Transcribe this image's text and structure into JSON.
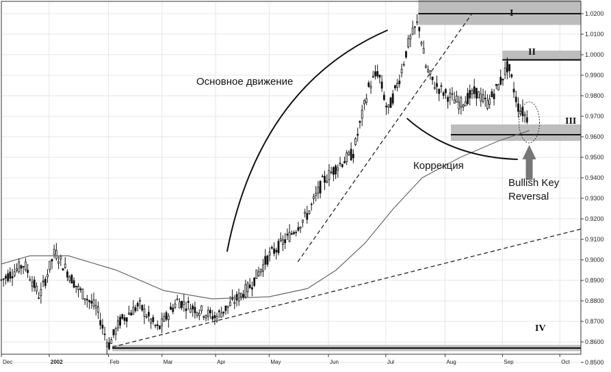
{
  "chart_data": {
    "type": "candlestick",
    "ylim": [
      0.854,
      1.026
    ],
    "y_ticks": [
      "0.8500",
      "0.8600",
      "0.8700",
      "0.8800",
      "0.8900",
      "0.9000",
      "0.9100",
      "0.9200",
      "0.9300",
      "0.9400",
      "0.9500",
      "0.9600",
      "0.9700",
      "0.9800",
      "0.9900",
      "1.0000",
      "1.0100",
      "1.0200"
    ],
    "y_tick_values": [
      0.85,
      0.86,
      0.87,
      0.88,
      0.89,
      0.9,
      0.91,
      0.92,
      0.93,
      0.94,
      0.95,
      0.96,
      0.97,
      0.98,
      0.99,
      1.0,
      1.01,
      1.02
    ],
    "x_ticks": [
      "Dec",
      "2002",
      "Feb",
      "Mar",
      "Apr",
      "May",
      "Jun",
      "Jul",
      "Aug",
      "Sep",
      "Oct"
    ],
    "x_tick_days": [
      0,
      25,
      56,
      84,
      112,
      140,
      171,
      201,
      232,
      262,
      292
    ],
    "x_range_days": [
      0,
      303
    ],
    "trading_days": 263,
    "price_path": [
      [
        0,
        0.89
      ],
      [
        12,
        0.898
      ],
      [
        20,
        0.882
      ],
      [
        28,
        0.904
      ],
      [
        40,
        0.886
      ],
      [
        50,
        0.876
      ],
      [
        56,
        0.858
      ],
      [
        62,
        0.87
      ],
      [
        72,
        0.878
      ],
      [
        82,
        0.866
      ],
      [
        92,
        0.88
      ],
      [
        102,
        0.876
      ],
      [
        112,
        0.872
      ],
      [
        122,
        0.88
      ],
      [
        130,
        0.887
      ],
      [
        140,
        0.902
      ],
      [
        150,
        0.911
      ],
      [
        160,
        0.922
      ],
      [
        168,
        0.938
      ],
      [
        176,
        0.946
      ],
      [
        184,
        0.952
      ],
      [
        192,
        0.984
      ],
      [
        197,
        0.992
      ],
      [
        202,
        0.972
      ],
      [
        208,
        0.988
      ],
      [
        213,
        1.006
      ],
      [
        218,
        1.016
      ],
      [
        222,
        0.994
      ],
      [
        226,
        0.986
      ],
      [
        232,
        0.981
      ],
      [
        240,
        0.976
      ],
      [
        248,
        0.982
      ],
      [
        254,
        0.976
      ],
      [
        260,
        0.985
      ],
      [
        265,
        0.995
      ],
      [
        270,
        0.975
      ],
      [
        276,
        0.968
      ]
    ],
    "moving_average": [
      [
        0,
        0.898
      ],
      [
        15,
        0.902
      ],
      [
        35,
        0.902
      ],
      [
        60,
        0.895
      ],
      [
        85,
        0.885
      ],
      [
        110,
        0.881
      ],
      [
        140,
        0.882
      ],
      [
        160,
        0.886
      ],
      [
        175,
        0.895
      ],
      [
        190,
        0.908
      ],
      [
        205,
        0.925
      ],
      [
        220,
        0.94
      ],
      [
        240,
        0.95
      ],
      [
        260,
        0.958
      ],
      [
        276,
        0.963
      ]
    ],
    "annotations": {
      "main_move": "Основное движение",
      "correction": "Коррекция",
      "reversal_line1": "Bullish Key",
      "reversal_line2": "Reversal",
      "level_I": "I",
      "level_II": "II",
      "level_III": "III",
      "level_IV": "IV"
    }
  }
}
